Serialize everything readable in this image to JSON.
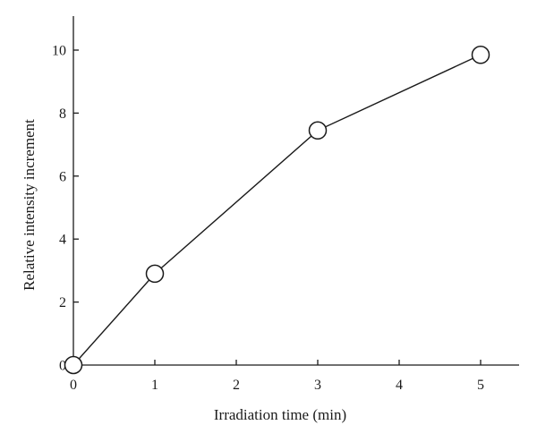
{
  "chart_data": {
    "type": "line",
    "title": "",
    "xlabel": "Irradiation time (min)",
    "ylabel": "Relative intensity increment",
    "xlim": [
      0,
      5.5
    ],
    "ylim": [
      0,
      11
    ],
    "xticks": [
      0,
      1,
      2,
      3,
      4,
      5
    ],
    "yticks": [
      0,
      2,
      4,
      6,
      8,
      10
    ],
    "grid": false,
    "legend": "none",
    "series": [
      {
        "marker": "open-circle",
        "x": [
          0,
          1,
          3,
          5
        ],
        "y": [
          0,
          2.9,
          7.45,
          9.85
        ]
      }
    ]
  }
}
